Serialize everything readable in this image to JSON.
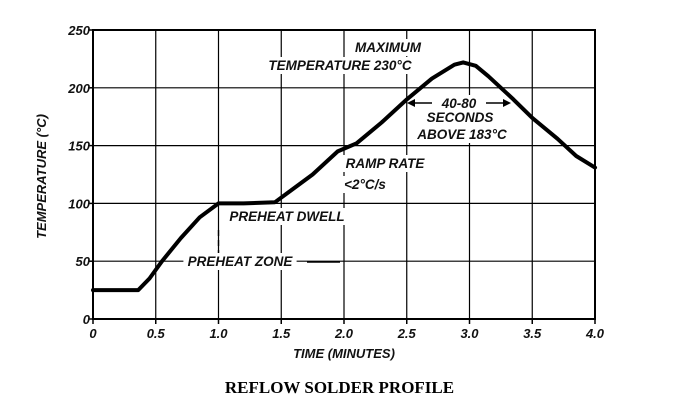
{
  "chart_data": {
    "type": "line",
    "title": "",
    "caption": "REFLOW SOLDER PROFILE",
    "xlabel": "TIME (MINUTES)",
    "ylabel": "TEMPERATURE (°C)",
    "xlim": [
      0,
      4.0
    ],
    "ylim": [
      0,
      250
    ],
    "x_ticks": [
      "0",
      "0.5",
      "1.0",
      "1.5",
      "2.0",
      "2.5",
      "3.0",
      "3.5",
      "4.0"
    ],
    "y_ticks": [
      "0",
      "50",
      "100",
      "150",
      "200",
      "250"
    ],
    "grid": true,
    "series": [
      {
        "x": [
          0,
          0.36,
          0.45,
          0.55,
          0.7,
          0.85,
          1.0,
          1.2,
          1.45,
          1.55,
          1.75,
          1.95,
          2.1,
          2.3,
          2.5,
          2.7,
          2.88,
          2.95,
          3.05,
          3.15,
          3.35,
          3.5,
          3.7,
          3.85,
          4.0
        ],
        "y": [
          25,
          25,
          35,
          50,
          70,
          88,
          100,
          100,
          101,
          109,
          125,
          145,
          152,
          170,
          190,
          208,
          220,
          222,
          219,
          210,
          190,
          174,
          156,
          141,
          131
        ]
      }
    ],
    "annotations": {
      "maximum_line1": "MAXIMUM",
      "maximum_line2": "TEMPERATURE 230°C",
      "seconds_line1": "40-80",
      "seconds_line2": "SECONDS",
      "seconds_line3": "ABOVE 183°C",
      "ramp_line1": "RAMP RATE",
      "ramp_line2": "<2°C/s",
      "preheat_dwell": "PREHEAT DWELL",
      "preheat_zone": "PREHEAT ZONE"
    }
  }
}
